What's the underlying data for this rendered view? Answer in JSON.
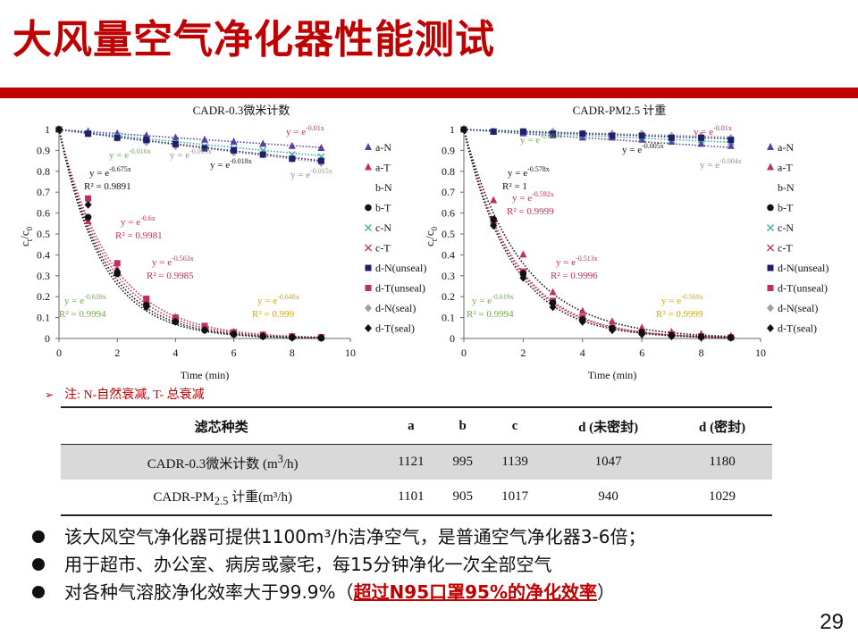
{
  "slide": {
    "title": "大风量空气净化器性能测试",
    "page_number": "29",
    "note_arrow": "➢",
    "note": "注: N-自然衰减, T- 总衰减"
  },
  "colors": {
    "title_red": "#c00000",
    "a": "#5b3fa0",
    "b": "#2f7fcf",
    "c": "#2fb0a0",
    "d_unseal": "#1f1f6e",
    "d_seal": "#a0a0a0",
    "T_red": "#c0305a",
    "dark": "#111111",
    "green_eq": "#70ad47",
    "gray_eq": "#909090",
    "gold_eq": "#d4a800"
  },
  "chart_data": [
    {
      "type": "scatter",
      "title": "CADR-0.3微米计数",
      "xlabel": "Time (min)",
      "ylabel_base": "c",
      "ylabel_sub_t": "t",
      "ylabel_slash": "/c",
      "ylabel_sub_0": "0",
      "xlim": [
        0,
        10
      ],
      "ylim": [
        0,
        1
      ],
      "xticks": [
        "0",
        "2",
        "4",
        "6",
        "8",
        "10"
      ],
      "yticks": [
        "0",
        "0.1",
        "0.2",
        "0.3",
        "0.4",
        "0.5",
        "0.6",
        "0.7",
        "0.8",
        "0.9",
        "1"
      ],
      "legend": [
        "a-N",
        "a-T",
        "b-N",
        "b-T",
        "c-N",
        "c-T",
        "d-N(unseal)",
        "d-T(unseal)",
        "d-N(seal)",
        "d-T(seal)"
      ],
      "series": [
        {
          "name": "a-N",
          "k": 0.01,
          "marker": "triangle",
          "x": [
            0,
            1,
            2,
            3,
            4,
            5,
            6,
            7,
            8,
            9
          ],
          "y": [
            1,
            0.99,
            0.98,
            0.97,
            0.96,
            0.95,
            0.94,
            0.93,
            0.92,
            0.91
          ]
        },
        {
          "name": "a-T",
          "k": 0.6,
          "marker": "triangle",
          "x": [
            0,
            1,
            2,
            3,
            4,
            5,
            6,
            7,
            8,
            9
          ],
          "y": [
            1,
            0.56,
            0.33,
            0.18,
            0.1,
            0.05,
            0.03,
            0.015,
            0.008,
            0.004
          ]
        },
        {
          "name": "c-N",
          "k": 0.015,
          "marker": "x",
          "x": [
            0,
            1,
            2,
            3,
            4,
            5,
            6,
            7,
            8,
            9
          ],
          "y": [
            1,
            0.98,
            0.97,
            0.95,
            0.94,
            0.92,
            0.91,
            0.9,
            0.88,
            0.87
          ]
        },
        {
          "name": "d-N(seal)",
          "k": 0.019,
          "marker": "diamond",
          "x": [
            0,
            1,
            2,
            3,
            4,
            5,
            6,
            7,
            8,
            9
          ],
          "y": [
            1,
            0.98,
            0.96,
            0.94,
            0.92,
            0.91,
            0.89,
            0.88,
            0.86,
            0.84
          ]
        },
        {
          "name": "d-N(unseal)",
          "k": 0.018,
          "marker": "square",
          "x": [
            0,
            1,
            2,
            3,
            4,
            5,
            6,
            7,
            8,
            9
          ],
          "y": [
            1,
            0.98,
            0.96,
            0.95,
            0.93,
            0.91,
            0.9,
            0.88,
            0.86,
            0.85
          ]
        },
        {
          "name": "d-T(unseal)",
          "k": 0.563,
          "marker": "square",
          "x": [
            0,
            1,
            2,
            3,
            4,
            5,
            6,
            7,
            8,
            9
          ],
          "y": [
            1,
            0.67,
            0.36,
            0.19,
            0.1,
            0.06,
            0.03,
            0.018,
            0.01,
            0.006
          ]
        },
        {
          "name": "b-T",
          "k": 0.675,
          "marker": "circle",
          "x": [
            0,
            1,
            2,
            3,
            4,
            5,
            6,
            7,
            8,
            9
          ],
          "y": [
            1,
            0.58,
            0.31,
            0.16,
            0.08,
            0.04,
            0.02,
            0.01,
            0.005,
            0.002
          ]
        },
        {
          "name": "d-T(seal)",
          "k": 0.639,
          "marker": "diamond",
          "x": [
            0,
            1,
            2,
            3,
            4,
            5,
            6,
            7,
            8,
            9
          ],
          "y": [
            1,
            0.64,
            0.32,
            0.15,
            0.08,
            0.04,
            0.02,
            0.01,
            0.005,
            0.003
          ]
        }
      ],
      "annotations": [
        {
          "eq_base": "y = e",
          "eq_exp": "-0.01x",
          "r2": "",
          "color": "red"
        },
        {
          "eq_base": "y = e",
          "eq_exp": "-0.016x",
          "r2": "",
          "color": "green"
        },
        {
          "eq_base": "y = e",
          "eq_exp": "-0.019x",
          "r2": "",
          "color": "gray"
        },
        {
          "eq_base": "y = e",
          "eq_exp": "-0.018x",
          "r2": "",
          "color": "dark"
        },
        {
          "eq_base": "y = e",
          "eq_exp": "-0.015x",
          "r2": "",
          "color": "gray"
        },
        {
          "eq_base": "y = e",
          "eq_exp": "-0.675x",
          "r2": "R² = 0.9891",
          "color": "dark"
        },
        {
          "eq_base": "y = e",
          "eq_exp": "-0.6x",
          "r2": "R² = 0.9981",
          "color": "red"
        },
        {
          "eq_base": "y = e",
          "eq_exp": "-0.563x",
          "r2": "R² = 0.9985",
          "color": "red"
        },
        {
          "eq_base": "y = e",
          "eq_exp": "-0.639x",
          "r2": "R² = 0.9994",
          "color": "green"
        },
        {
          "eq_base": "y = e",
          "eq_exp": "-0.648x",
          "r2": "R² = 0.999",
          "color": "gold"
        }
      ]
    },
    {
      "type": "scatter",
      "title": "CADR-PM2.5 计重",
      "xlabel": "Time (min)",
      "ylabel_base": "c",
      "ylabel_sub_t": "t",
      "ylabel_slash": "/c",
      "ylabel_sub_0": "0",
      "xlim": [
        0,
        10
      ],
      "ylim": [
        0,
        1
      ],
      "xticks": [
        "0",
        "2",
        "4",
        "6",
        "8",
        "10"
      ],
      "yticks": [
        "0",
        "0.1",
        "0.2",
        "0.3",
        "0.4",
        "0.5",
        "0.6",
        "0.7",
        "0.8",
        "0.9",
        "1"
      ],
      "legend": [
        "a-N",
        "a-T",
        "b-N",
        "b-T",
        "c-N",
        "c-T",
        "d-N(unseal)",
        "d-T(unseal)",
        "d-N(seal)",
        "d-T(seal)"
      ],
      "series": [
        {
          "name": "a-N",
          "k": 0.01,
          "marker": "triangle",
          "x": [
            0,
            1,
            2,
            3,
            4,
            5,
            6,
            7,
            8,
            9
          ],
          "y": [
            1,
            0.99,
            0.98,
            0.97,
            0.96,
            0.96,
            0.95,
            0.94,
            0.93,
            0.92
          ]
        },
        {
          "name": "a-T",
          "k": 0.578,
          "marker": "triangle",
          "x": [
            0,
            1,
            2,
            3,
            4,
            5,
            6,
            7,
            8,
            9
          ],
          "y": [
            1,
            0.66,
            0.4,
            0.22,
            0.13,
            0.08,
            0.05,
            0.03,
            0.02,
            0.01
          ]
        },
        {
          "name": "c-N",
          "k": 0.007,
          "marker": "x",
          "x": [
            0,
            1,
            2,
            3,
            4,
            5,
            6,
            7,
            8,
            9
          ],
          "y": [
            1,
            0.99,
            0.99,
            0.98,
            0.97,
            0.97,
            0.96,
            0.95,
            0.95,
            0.94
          ]
        },
        {
          "name": "d-N(seal)",
          "k": 0.004,
          "marker": "diamond",
          "x": [
            0,
            1,
            2,
            3,
            4,
            5,
            6,
            7,
            8,
            9
          ],
          "y": [
            1,
            0.99,
            0.99,
            0.99,
            0.98,
            0.98,
            0.98,
            0.97,
            0.97,
            0.96
          ]
        },
        {
          "name": "d-N(unseal)",
          "k": 0.005,
          "marker": "square",
          "x": [
            0,
            1,
            2,
            3,
            4,
            5,
            6,
            7,
            8,
            9
          ],
          "y": [
            1,
            0.99,
            0.99,
            0.98,
            0.98,
            0.97,
            0.97,
            0.96,
            0.96,
            0.95
          ]
        },
        {
          "name": "d-T(unseal)",
          "k": 0.592,
          "marker": "square",
          "x": [
            0,
            1,
            2,
            3,
            4,
            5,
            6,
            7,
            8,
            9
          ],
          "y": [
            1,
            0.56,
            0.32,
            0.18,
            0.1,
            0.05,
            0.03,
            0.02,
            0.01,
            0.005
          ]
        },
        {
          "name": "b-T",
          "k": 0.513,
          "marker": "circle",
          "x": [
            0,
            1,
            2,
            3,
            4,
            5,
            6,
            7,
            8,
            9
          ],
          "y": [
            1,
            0.57,
            0.31,
            0.17,
            0.09,
            0.05,
            0.03,
            0.015,
            0.008,
            0.004
          ]
        },
        {
          "name": "d-T(seal)",
          "k": 0.619,
          "marker": "diamond",
          "x": [
            0,
            1,
            2,
            3,
            4,
            5,
            6,
            7,
            8,
            9
          ],
          "y": [
            1,
            0.54,
            0.29,
            0.15,
            0.08,
            0.04,
            0.02,
            0.01,
            0.005,
            0.003
          ]
        }
      ],
      "annotations": [
        {
          "eq_base": "y = e",
          "eq_exp": "-0.01x",
          "r2": "",
          "color": "red"
        },
        {
          "eq_base": "y = e",
          "eq_exp": "-0.007x",
          "r2": "",
          "color": "green"
        },
        {
          "eq_base": "y = e",
          "eq_exp": "-0.005x",
          "r2": "",
          "color": "dark"
        },
        {
          "eq_base": "y = e",
          "eq_exp": "-0.004x",
          "r2": "",
          "color": "gray"
        },
        {
          "eq_base": "y = e",
          "eq_exp": "-0.578x",
          "r2": "R² = 1",
          "color": "dark"
        },
        {
          "eq_base": "y = e",
          "eq_exp": "-0.592x",
          "r2": "R² = 0.9999",
          "color": "red"
        },
        {
          "eq_base": "y = e",
          "eq_exp": "-0.513x",
          "r2": "R² = 0.9996",
          "color": "red"
        },
        {
          "eq_base": "y = e",
          "eq_exp": "-0.619x",
          "r2": "R² = 0.9994",
          "color": "green"
        },
        {
          "eq_base": "y = e",
          "eq_exp": "-0.569x",
          "r2": "R² = 0.9999",
          "color": "gold"
        }
      ]
    }
  ],
  "table": {
    "headers": [
      "滤芯种类",
      "a",
      "b",
      "c",
      "d (未密封)",
      "d (密封)"
    ],
    "rows": [
      {
        "label_main": "CADR-0.3微米计数 (m",
        "label_sup": "3",
        "label_sub": "",
        "label_end": "/h)",
        "values": [
          "1121",
          "995",
          "1139",
          "1047",
          "1180"
        ]
      },
      {
        "label_main": "CADR-PM",
        "label_sup": "",
        "label_sub": "2.5",
        "label_end": " 计重(m³/h)",
        "values": [
          "1101",
          "905",
          "1017",
          "940",
          "1029"
        ]
      }
    ]
  },
  "bullets": [
    {
      "text": "该大风空气净化器可提供1100m³/h洁净空气，是普通空气净化器3-6倍；",
      "highlight": "",
      "tail": ""
    },
    {
      "text": "用于超市、办公室、病房或豪宅，每15分钟净化一次全部空气",
      "highlight": "",
      "tail": ""
    },
    {
      "text": "对各种气溶胶净化效率大于99.9%（",
      "highlight": "超过N95口罩95%的净化效率",
      "tail": "）"
    }
  ]
}
